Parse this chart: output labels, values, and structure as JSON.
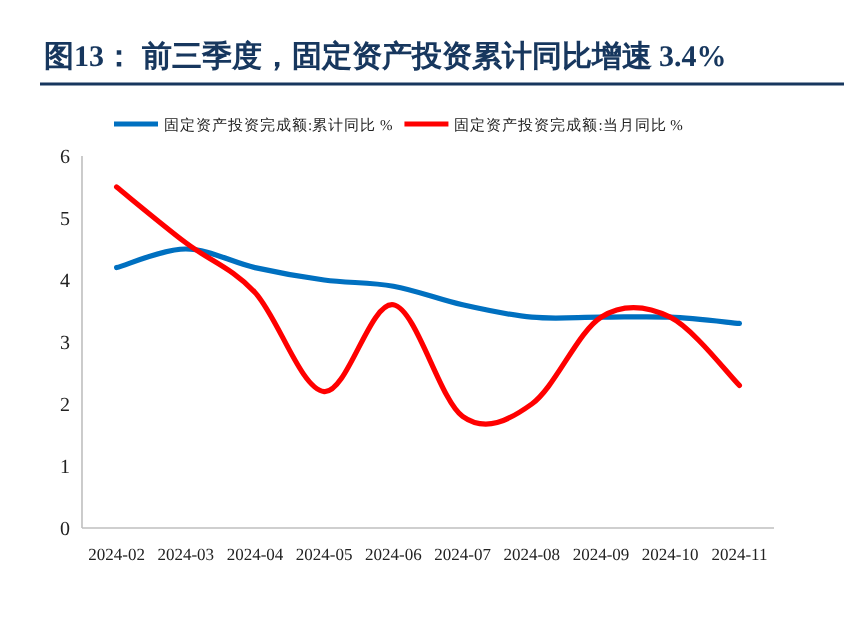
{
  "chart_data": {
    "type": "line",
    "title": "图13：  前三季度，固定资产投资累计同比增速 3.4%",
    "categories": [
      "2024-02",
      "2024-03",
      "2024-04",
      "2024-05",
      "2024-06",
      "2024-07",
      "2024-08",
      "2024-09",
      "2024-10",
      "2024-11"
    ],
    "series": [
      {
        "name": "固定资产投资完成额:累计同比  %",
        "color": "#0070c0",
        "values": [
          4.2,
          4.5,
          4.2,
          4.0,
          3.9,
          3.6,
          3.4,
          3.4,
          3.4,
          3.3
        ]
      },
      {
        "name": "固定资产投资完成额:当月同比  %",
        "color": "#ff0000",
        "values": [
          5.5,
          4.6,
          3.8,
          2.2,
          3.6,
          1.8,
          2.0,
          3.4,
          3.4,
          2.3
        ]
      }
    ],
    "ylim": [
      0,
      6
    ],
    "yticks": [
      0,
      1,
      2,
      3,
      4,
      5,
      6
    ],
    "legend": "top",
    "grid": false,
    "marker": "none",
    "line_style": "solid"
  }
}
